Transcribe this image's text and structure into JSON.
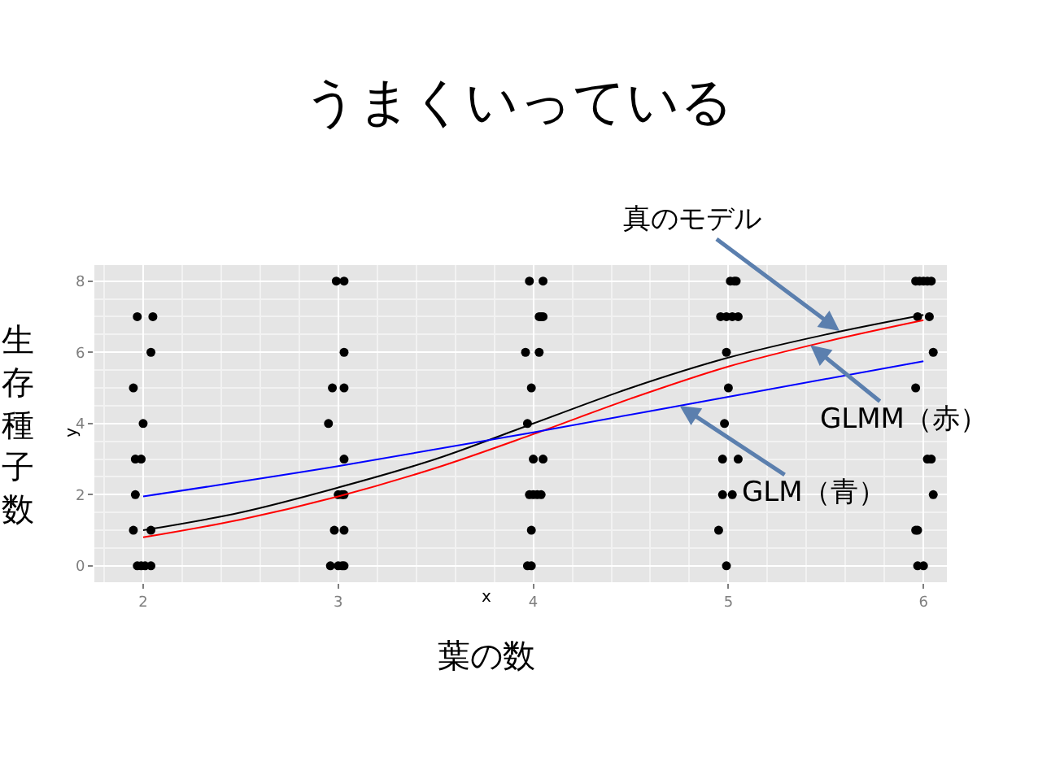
{
  "chart_data": {
    "type": "scatter",
    "title": "うまくいっている",
    "xlabel": "葉の数",
    "ylabel": "生存種子数",
    "xlim": [
      1.75,
      6.12
    ],
    "ylim": [
      -0.46,
      8.45
    ],
    "xticks": [
      2,
      3,
      4,
      5,
      6
    ],
    "yticks": [
      0,
      2,
      4,
      6,
      8
    ],
    "grid": true,
    "series": [
      {
        "marker": "circle",
        "color": "#000000",
        "x": [
          1.97,
          2.05,
          2.04,
          1.95,
          2.0,
          1.96,
          1.99,
          1.96,
          1.95,
          2.04,
          1.97,
          1.99,
          2.01,
          2.04,
          2.99,
          3.03,
          3.03,
          2.97,
          3.03,
          2.95,
          3.03,
          3.0,
          3.02,
          3.03,
          2.98,
          3.03,
          2.96,
          3.0,
          3.02,
          3.03,
          3.98,
          4.05,
          4.03,
          4.04,
          4.05,
          3.96,
          4.03,
          3.99,
          3.97,
          4.0,
          4.05,
          3.98,
          4.0,
          4.02,
          4.04,
          3.99,
          3.97,
          3.99,
          5.01,
          5.03,
          5.04,
          4.96,
          4.99,
          5.02,
          5.05,
          4.99,
          5.0,
          4.98,
          4.97,
          5.05,
          4.97,
          5.02,
          4.95,
          4.99,
          5.96,
          5.98,
          6.0,
          6.02,
          6.04,
          5.97,
          6.03,
          6.05,
          5.96,
          6.02,
          6.04,
          6.05,
          5.96,
          5.97,
          5.97,
          6.0
        ],
        "values": [
          7,
          7,
          6,
          5,
          4,
          3,
          3,
          2,
          1,
          1,
          0,
          0,
          0,
          0,
          8,
          8,
          6,
          5,
          5,
          4,
          3,
          2,
          2,
          2,
          1,
          1,
          0,
          0,
          0,
          0,
          8,
          8,
          7,
          7,
          7,
          6,
          6,
          5,
          4,
          3,
          3,
          2,
          2,
          2,
          2,
          1,
          0,
          0,
          8,
          8,
          8,
          7,
          7,
          7,
          7,
          6,
          5,
          4,
          3,
          3,
          2,
          2,
          1,
          0,
          8,
          8,
          8,
          8,
          8,
          7,
          7,
          6,
          5,
          3,
          3,
          2,
          1,
          1,
          0,
          0
        ]
      },
      {
        "type": "line",
        "color": "#000000",
        "x": [
          2,
          2.5,
          3,
          3.5,
          4,
          4.5,
          5,
          5.5,
          6
        ],
        "values": [
          1.0,
          1.5,
          2.2,
          3.0,
          4.0,
          5.0,
          5.85,
          6.5,
          7.05
        ]
      },
      {
        "type": "line",
        "color": "#ff0000",
        "x": [
          2,
          2.5,
          3,
          3.5,
          4,
          4.5,
          5,
          5.5,
          6
        ],
        "values": [
          0.8,
          1.3,
          1.95,
          2.75,
          3.7,
          4.7,
          5.6,
          6.3,
          6.9
        ]
      },
      {
        "type": "line",
        "color": "#0000ff",
        "x": [
          2,
          3,
          4,
          5,
          6
        ],
        "values": [
          1.95,
          2.8,
          3.75,
          4.75,
          5.75
        ]
      }
    ],
    "annotations": [
      {
        "text": "真のモデル",
        "x": 5.57,
        "y": 6.6
      },
      {
        "text": "GLMM（赤）",
        "x": 5.42,
        "y": 6.2
      },
      {
        "text": "GLM（青）",
        "x": 4.75,
        "y": 4.5
      },
      "x",
      "y"
    ]
  }
}
